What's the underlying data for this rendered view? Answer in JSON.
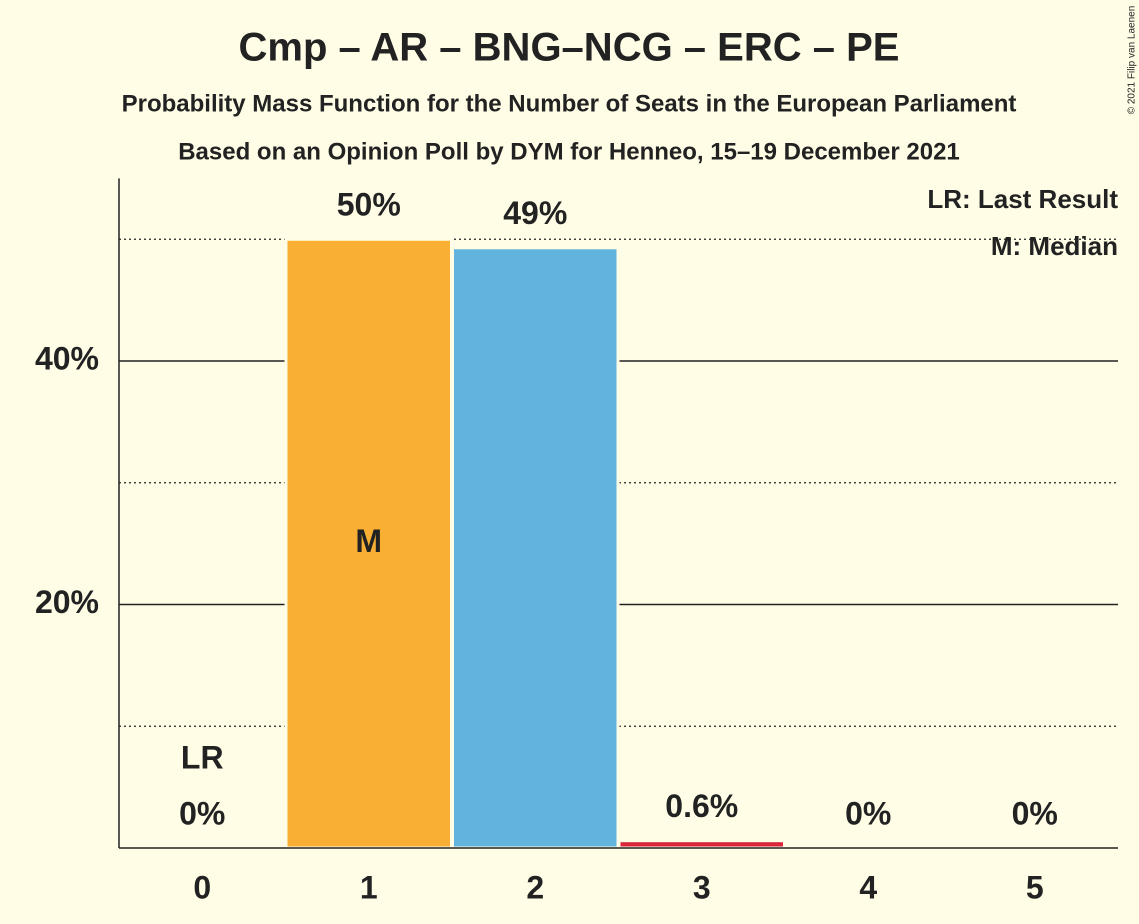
{
  "chart_data": {
    "type": "bar",
    "title": "Cmp – AR – BNG–NCG – ERC – PE",
    "subtitles": [
      "Probability Mass Function for the Number of Seats in the European Parliament",
      "Based on an Opinion Poll by DYM for Henneo, 15–19 December 2021"
    ],
    "credit": "© 2021 Filip van Laenen",
    "categories": [
      "0",
      "1",
      "2",
      "3",
      "4",
      "5"
    ],
    "values": [
      0,
      50,
      49.3,
      0.6,
      0,
      0
    ],
    "value_labels": [
      "0%",
      "50%",
      "49%",
      "0.6%",
      "0%",
      "0%"
    ],
    "colors": [
      null,
      "#f9ae34",
      "#62b3dd",
      "#d9263a",
      null,
      null
    ],
    "ylim": [
      0,
      55
    ],
    "yticks": [
      {
        "value": 20,
        "label": "20%"
      },
      {
        "value": 40,
        "label": "40%"
      }
    ],
    "minor_yticks": [
      10,
      30,
      50
    ],
    "grid": true,
    "annotations": [
      {
        "text": "LR",
        "category": "0"
      },
      {
        "text": "M",
        "category": "1"
      }
    ],
    "legend": [
      "LR: Last Result",
      "M: Median"
    ],
    "legend_position": "top-right"
  }
}
